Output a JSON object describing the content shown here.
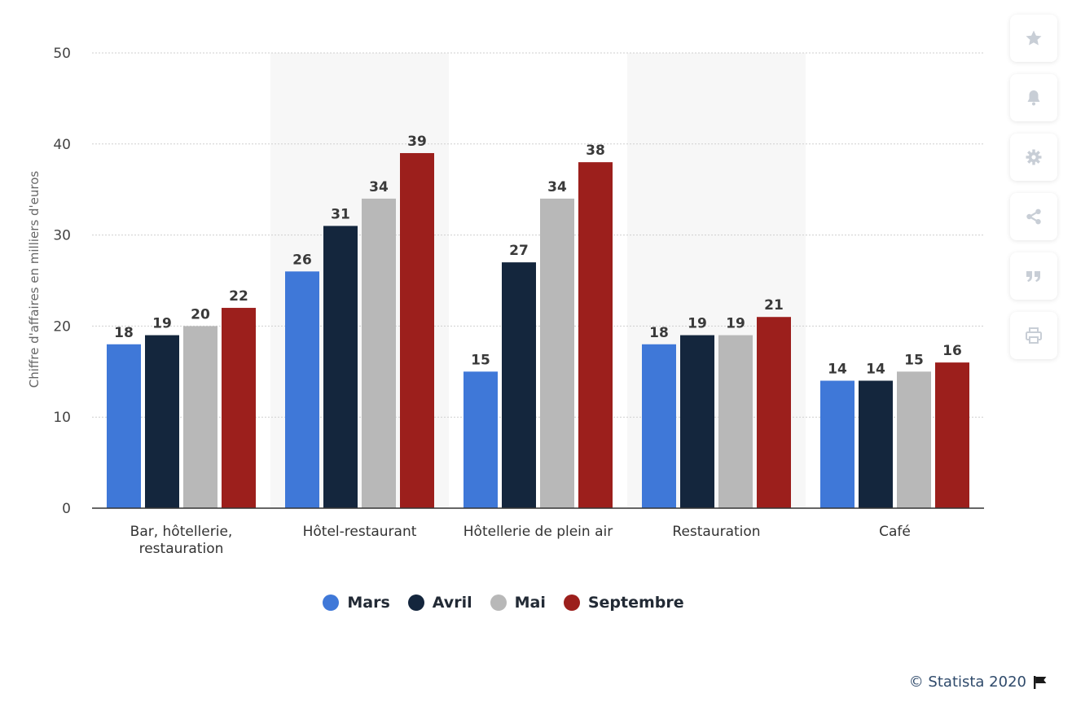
{
  "chart_data": {
    "type": "bar",
    "categories": [
      "Bar, hôtellerie,\nrestauration",
      "Hôtel-restaurant",
      "Hôtellerie de plein air",
      "Restauration",
      "Café"
    ],
    "series": [
      {
        "name": "Mars",
        "color": "#3f78d8",
        "values": [
          18,
          26,
          15,
          18,
          14
        ]
      },
      {
        "name": "Avril",
        "color": "#14263d",
        "values": [
          19,
          31,
          27,
          19,
          14
        ]
      },
      {
        "name": "Mai",
        "color": "#b8b8b8",
        "values": [
          20,
          34,
          34,
          19,
          15
        ]
      },
      {
        "name": "Septembre",
        "color": "#9c1f1c",
        "values": [
          22,
          39,
          38,
          21,
          16
        ]
      }
    ],
    "ylabel": "Chiffre d'affaires en milliers d'euros",
    "xlabel": "",
    "ylim": [
      0,
      50
    ],
    "yticks": [
      0,
      10,
      20,
      30,
      40,
      50
    ],
    "grid": true,
    "alternating_band_color": "#f7f7f7",
    "legend_position": "bottom-center"
  },
  "toolbar": {
    "buttons": [
      {
        "icon": "star-icon"
      },
      {
        "icon": "bell-icon"
      },
      {
        "icon": "gear-icon"
      },
      {
        "icon": "share-icon"
      },
      {
        "icon": "quote-icon"
      },
      {
        "icon": "print-icon"
      }
    ],
    "icon_color": "#c8ced6"
  },
  "credits": {
    "text": "© Statista 2020",
    "icon": "flag-icon"
  }
}
